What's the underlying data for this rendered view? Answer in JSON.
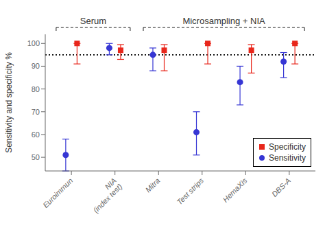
{
  "chart_data": {
    "type": "scatter",
    "categories": [
      "Euroimmun",
      "NIA\n(index test)",
      "Mitra",
      "Test strips",
      "HemaXis",
      "DBS-A"
    ],
    "series": [
      {
        "name": "Specificity",
        "color": "#e8261b",
        "marker": "square",
        "values": [
          100,
          97,
          97,
          100,
          97,
          100
        ],
        "ci_low": [
          91,
          93,
          88,
          91,
          87,
          91
        ],
        "ci_high": [
          100,
          99.5,
          99.5,
          100,
          99.5,
          100
        ]
      },
      {
        "name": "Sensitivity",
        "color": "#3636d4",
        "marker": "circle",
        "values": [
          51,
          98,
          95,
          61,
          83,
          92
        ],
        "ci_low": [
          44,
          95,
          88,
          51,
          73,
          85
        ],
        "ci_high": [
          58,
          100,
          98,
          70,
          90,
          96
        ]
      }
    ],
    "reference_line": 95,
    "ylabel": "Sensitivity and specificity %",
    "ylim": [
      44,
      104
    ],
    "yticks": [
      50,
      60,
      70,
      80,
      90,
      100
    ],
    "brackets": [
      {
        "label": "Serum",
        "from": "Euroimmun",
        "to": "NIA\n(index test)"
      },
      {
        "label": "Microsampling + NIA",
        "from": "Mitra",
        "to": "DBS-A"
      }
    ],
    "legend": "lower right",
    "grid": false
  }
}
